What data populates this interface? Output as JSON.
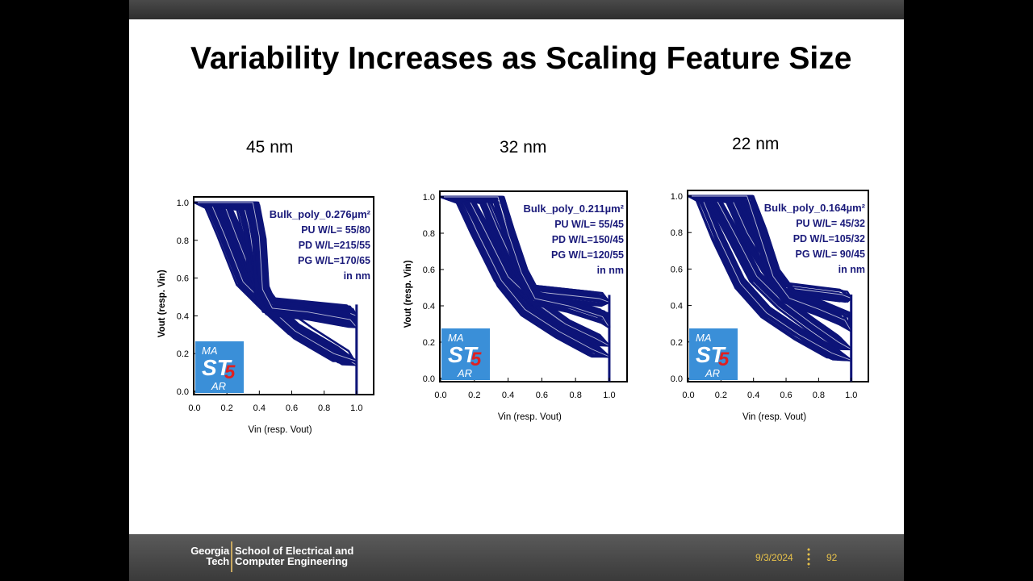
{
  "slide": {
    "title": "Variability Increases as Scaling Feature Size"
  },
  "footer": {
    "institution_line1": "Georgia",
    "institution_line2": "Tech",
    "school_line1": "School of Electrical and",
    "school_line2": "Computer Engineering",
    "date": "9/3/2024",
    "page": "92"
  },
  "colors": {
    "curve": "#0d1478",
    "annotation": "#1a1a7a",
    "logo_bg": "#3a8fd8",
    "logo_accent": "#e02020",
    "footer_accent": "#e8c24a"
  },
  "chart_data": [
    {
      "type": "line",
      "panel_label": "45 nm",
      "title": "",
      "xlabel": "Vin (resp. Vout)",
      "ylabel": "Vout (resp. Vin)",
      "xlim": [
        0,
        1.0
      ],
      "ylim": [
        0,
        1.0
      ],
      "xticks": [
        "0.0",
        "0.2",
        "0.4",
        "0.6",
        "0.8",
        "1.0"
      ],
      "yticks": [
        "0.0",
        "0.2",
        "0.4",
        "0.6",
        "0.8",
        "1.0"
      ],
      "annotation": [
        "Bulk_poly_0.276µm²",
        "PU W/L=  55/80",
        "PD W/L=215/55",
        "PG W/L=170/65",
        "in nm"
      ],
      "logo": "MAST5AR",
      "curve_family": "butterfly",
      "series": [
        {
          "x": [
            0.0,
            0.18,
            0.26,
            0.38,
            0.5,
            0.7,
            0.92,
            1.0
          ],
          "y": [
            1.0,
            1.0,
            0.82,
            0.56,
            0.42,
            0.3,
            0.18,
            0.14
          ]
        },
        {
          "x": [
            0.0,
            0.1,
            0.18,
            0.3,
            0.44,
            0.62,
            0.86,
            1.0
          ],
          "y": [
            1.0,
            1.0,
            0.84,
            0.58,
            0.46,
            0.32,
            0.2,
            0.16
          ]
        },
        {
          "x": [
            0.0,
            0.3,
            0.34,
            0.38,
            0.46,
            0.7,
            0.94,
            1.0
          ],
          "y": [
            1.0,
            1.0,
            0.86,
            0.62,
            0.46,
            0.44,
            0.42,
            0.4
          ]
        },
        {
          "x": [
            0.0,
            0.36,
            0.4,
            0.42,
            0.48,
            0.7,
            0.96,
            1.0
          ],
          "y": [
            1.0,
            1.0,
            0.82,
            0.54,
            0.44,
            0.42,
            0.38,
            0.34
          ]
        }
      ]
    },
    {
      "type": "line",
      "panel_label": "32 nm",
      "title": "",
      "xlabel": "Vin (resp. Vout)",
      "ylabel": "Vout (resp. Vin)",
      "xlim": [
        0,
        1.0
      ],
      "ylim": [
        0,
        1.0
      ],
      "xticks": [
        "0.0",
        "0.2",
        "0.4",
        "0.6",
        "0.8",
        "1.0"
      ],
      "yticks": [
        "0.0",
        "0.2",
        "0.4",
        "0.6",
        "0.8",
        "1.0"
      ],
      "annotation": [
        "Bulk_poly_0.211µm²",
        "PU W/L=  55/45",
        "PD W/L=150/45",
        "PG W/L=120/55",
        "in nm"
      ],
      "logo": "MAST5AR",
      "curve_family": "butterfly",
      "series": [
        {
          "x": [
            0.0,
            0.12,
            0.22,
            0.36,
            0.5,
            0.7,
            0.9,
            1.0
          ],
          "y": [
            1.0,
            1.0,
            0.8,
            0.54,
            0.38,
            0.26,
            0.16,
            0.12
          ]
        },
        {
          "x": [
            0.0,
            0.16,
            0.26,
            0.4,
            0.56,
            0.74,
            0.92,
            1.0
          ],
          "y": [
            1.0,
            1.0,
            0.82,
            0.56,
            0.42,
            0.3,
            0.22,
            0.18
          ]
        },
        {
          "x": [
            0.0,
            0.26,
            0.34,
            0.44,
            0.54,
            0.74,
            0.94,
            1.0
          ],
          "y": [
            1.0,
            1.0,
            0.82,
            0.62,
            0.48,
            0.46,
            0.44,
            0.42
          ]
        },
        {
          "x": [
            0.0,
            0.34,
            0.4,
            0.48,
            0.56,
            0.76,
            0.96,
            1.0
          ],
          "y": [
            1.0,
            1.0,
            0.8,
            0.58,
            0.44,
            0.4,
            0.34,
            0.28
          ]
        }
      ]
    },
    {
      "type": "line",
      "panel_label": "22 nm",
      "title": "",
      "xlabel": "Vin (resp. Vout)",
      "ylabel": "",
      "xlim": [
        0,
        1.0
      ],
      "ylim": [
        0,
        1.0
      ],
      "xticks": [
        "0.0",
        "0.2",
        "0.4",
        "0.6",
        "0.8",
        "1.0"
      ],
      "yticks": [
        "0.0",
        "0.2",
        "0.4",
        "0.6",
        "0.8",
        "1.0"
      ],
      "annotation": [
        "Bulk_poly_0.164µm²",
        "PU W/L=  45/32",
        "PD W/L=105/32",
        "PG W/L=  90/45",
        "in nm"
      ],
      "logo": "MAST5AR",
      "curve_family": "butterfly",
      "series": [
        {
          "x": [
            0.0,
            0.08,
            0.18,
            0.32,
            0.48,
            0.68,
            0.88,
            1.0
          ],
          "y": [
            1.0,
            1.0,
            0.78,
            0.52,
            0.36,
            0.24,
            0.14,
            0.1
          ]
        },
        {
          "x": [
            0.0,
            0.16,
            0.28,
            0.42,
            0.58,
            0.76,
            0.92,
            1.0
          ],
          "y": [
            1.0,
            1.0,
            0.8,
            0.56,
            0.42,
            0.3,
            0.2,
            0.16
          ]
        },
        {
          "x": [
            0.0,
            0.26,
            0.36,
            0.48,
            0.58,
            0.76,
            0.94,
            1.0
          ],
          "y": [
            1.0,
            1.0,
            0.8,
            0.62,
            0.5,
            0.48,
            0.46,
            0.44
          ]
        },
        {
          "x": [
            0.0,
            0.36,
            0.44,
            0.52,
            0.62,
            0.8,
            0.96,
            1.0
          ],
          "y": [
            1.0,
            1.0,
            0.78,
            0.56,
            0.44,
            0.38,
            0.32,
            0.26
          ]
        }
      ]
    }
  ]
}
